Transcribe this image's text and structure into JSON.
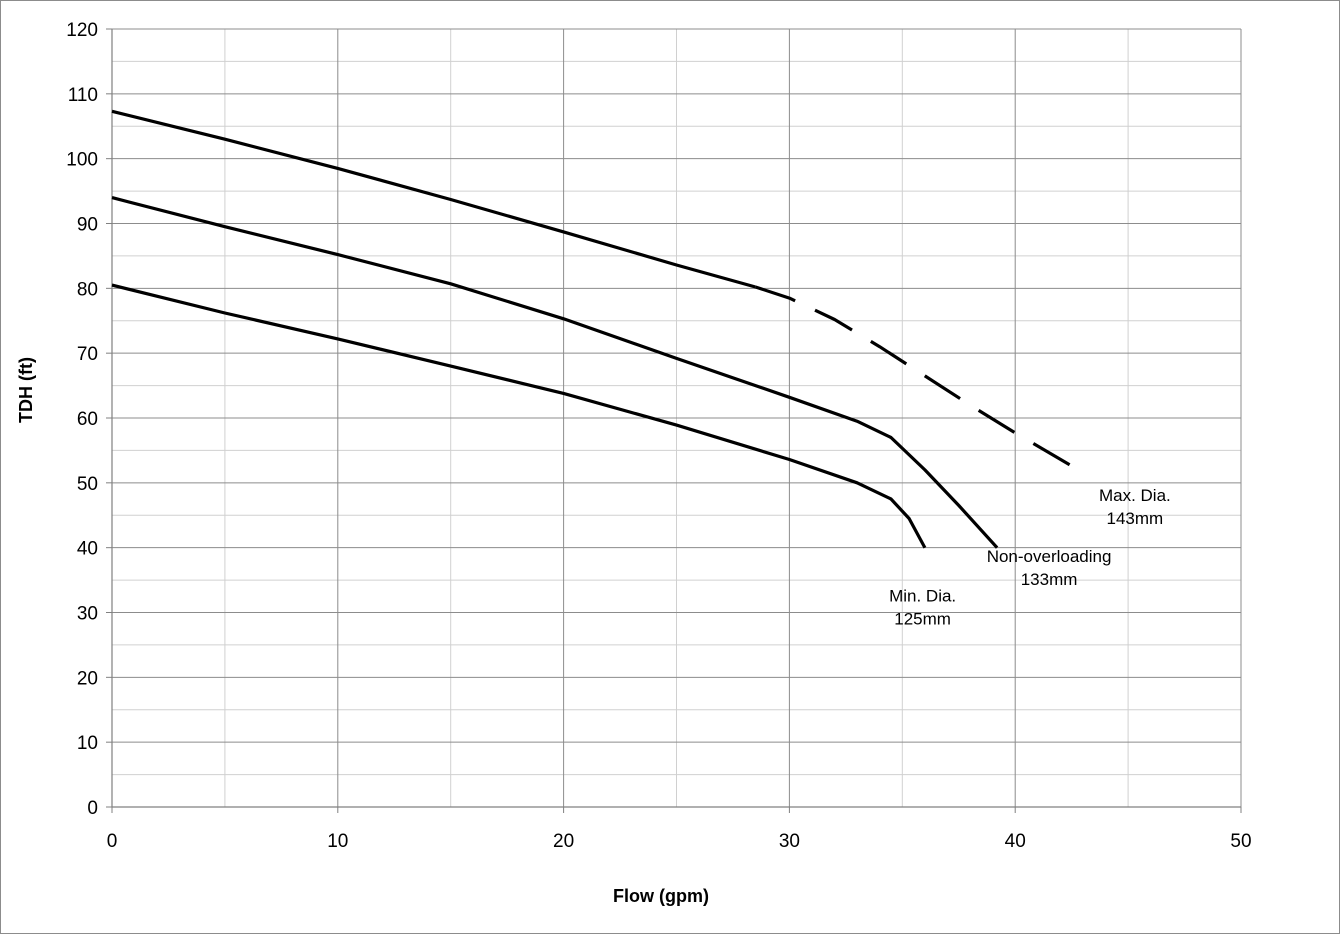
{
  "chart_data": {
    "type": "line",
    "title": "",
    "xlabel": "Flow (gpm)",
    "ylabel": "TDH (ft)",
    "xlim": [
      0,
      50
    ],
    "ylim": [
      0,
      120
    ],
    "x_major_step": 10,
    "x_minor_step": 5,
    "y_major_step": 10,
    "y_minor_step": 5,
    "x_ticks": [
      "0",
      "10",
      "20",
      "30",
      "40",
      "50"
    ],
    "y_ticks": [
      "0",
      "10",
      "20",
      "30",
      "40",
      "50",
      "60",
      "70",
      "80",
      "90",
      "100",
      "110",
      "120"
    ],
    "grid": true,
    "legend": "none",
    "colors": {
      "line": "#000000",
      "grid_major": "#8c8c8c",
      "grid_minor": "#d0d0d0",
      "frame": "#8c8c8c"
    },
    "series": [
      {
        "style": "solid",
        "x": [
          0,
          5,
          10,
          15,
          20,
          25,
          28.5
        ],
        "y": [
          107.3,
          103,
          98.5,
          93.7,
          88.7,
          83.6,
          80.2
        ]
      },
      {
        "style": "dashed",
        "x": [
          28.5,
          30,
          32,
          34,
          36,
          38,
          40,
          42.7
        ],
        "y": [
          80.2,
          78.5,
          75.2,
          71,
          66.5,
          62,
          57.7,
          52.2
        ]
      },
      {
        "style": "solid",
        "x": [
          0,
          5,
          10,
          15,
          20,
          25,
          30,
          33,
          34.5,
          36,
          37.5,
          39.2
        ],
        "y": [
          94,
          89.5,
          85.2,
          80.7,
          75.3,
          69.2,
          63.2,
          59.5,
          57,
          52,
          46.5,
          40
        ]
      },
      {
        "style": "solid",
        "x": [
          0,
          5,
          10,
          15,
          20,
          25,
          30,
          33,
          34.5,
          35.3,
          36
        ],
        "y": [
          80.5,
          76.2,
          72.2,
          68,
          63.8,
          58.9,
          53.6,
          50,
          47.5,
          44.5,
          40
        ]
      }
    ],
    "annotations": [
      {
        "id": "max",
        "lines": [
          "Max. Dia.",
          "143mm"
        ],
        "x": 45.3,
        "y": 47.2
      },
      {
        "id": "mid",
        "lines": [
          "Non-overloading",
          "133mm"
        ],
        "x": 41.5,
        "y": 37.8
      },
      {
        "id": "min",
        "lines": [
          "Min. Dia.",
          "125mm"
        ],
        "x": 35.9,
        "y": 31.7
      }
    ]
  }
}
